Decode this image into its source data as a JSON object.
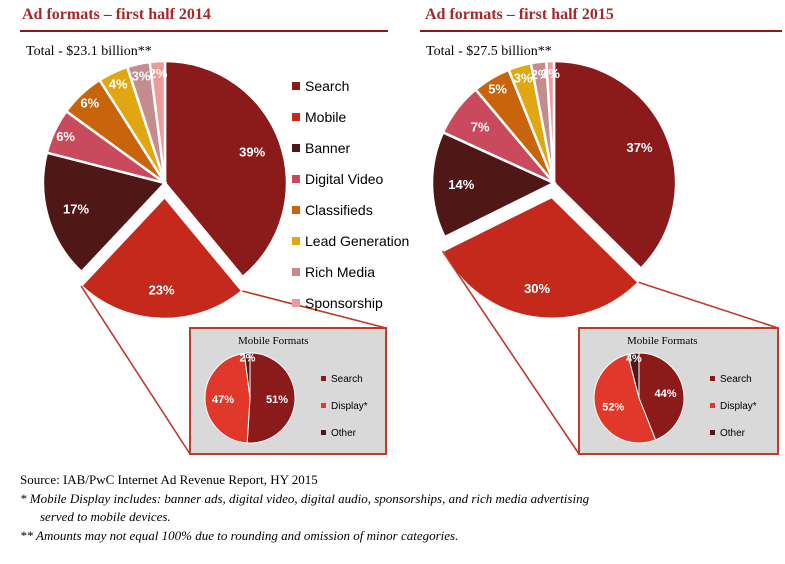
{
  "colors": {
    "title": "#a32a2a",
    "rule": "#8b1a1a",
    "inset_bg": "#d9d9d9",
    "inset_border": "#c0392b",
    "connector": "#c0392b"
  },
  "categories": [
    {
      "name": "Search",
      "color": "#8b1a1a"
    },
    {
      "name": "Mobile",
      "color": "#c4291c"
    },
    {
      "name": "Banner",
      "color": "#501717"
    },
    {
      "name": "Digital Video",
      "color": "#c94a5c"
    },
    {
      "name": "Classifieds",
      "color": "#c8640c"
    },
    {
      "name": "Lead Generation",
      "color": "#e1a712"
    },
    {
      "name": "Rich Media",
      "color": "#c48c8c"
    },
    {
      "name": "Sponsorship",
      "color": "#ec9a9a"
    }
  ],
  "mobile_categories": [
    {
      "name": "Search",
      "color": "#8b1a1a"
    },
    {
      "name": "Display*",
      "color": "#e0392b"
    },
    {
      "name": "Other",
      "color": "#501717"
    }
  ],
  "chart_data": [
    {
      "type": "pie",
      "title": "Ad formats – first half 2014",
      "subtitle": "Total - $23.1 billion**",
      "categories": [
        "Search",
        "Mobile",
        "Banner",
        "Digital Video",
        "Classifieds",
        "Lead Generation",
        "Rich Media",
        "Sponsorship"
      ],
      "values": [
        39,
        23,
        17,
        6,
        6,
        4,
        3,
        2
      ],
      "labels": [
        "39%",
        "23%",
        "17%",
        "6%",
        "6%",
        "4%",
        "3%",
        "2%"
      ],
      "exploded": "Mobile",
      "inset": {
        "type": "pie",
        "title": "Mobile Formats",
        "categories": [
          "Search",
          "Display*",
          "Other"
        ],
        "values": [
          51,
          47,
          2
        ],
        "labels": [
          "51%",
          "47%",
          "2%"
        ]
      }
    },
    {
      "type": "pie",
      "title": "Ad formats – first half 2015",
      "subtitle": "Total - $27.5 billion**",
      "categories": [
        "Search",
        "Mobile",
        "Banner",
        "Digital Video",
        "Classifieds",
        "Lead Generation",
        "Rich Media",
        "Sponsorship"
      ],
      "values": [
        37,
        30,
        14,
        7,
        5,
        3,
        2,
        1
      ],
      "labels": [
        "37%",
        "30%",
        "14%",
        "7%",
        "5%",
        "3%",
        "2%",
        "1%"
      ],
      "exploded": "Mobile",
      "inset": {
        "type": "pie",
        "title": "Mobile Formats",
        "categories": [
          "Search",
          "Display*",
          "Other"
        ],
        "values": [
          44,
          52,
          4
        ],
        "labels": [
          "44%",
          "52%",
          "4%"
        ]
      }
    }
  ],
  "footnotes": {
    "source": "Source: IAB/PwC Internet Ad Revenue Report, HY 2015",
    "note1_line1": "* Mobile Display includes: banner ads, digital video, digital audio, sponsorships, and rich media advertising",
    "note1_line2": "served to mobile devices.",
    "note2": "** Amounts may not equal 100% due to rounding and omission of minor categories."
  }
}
